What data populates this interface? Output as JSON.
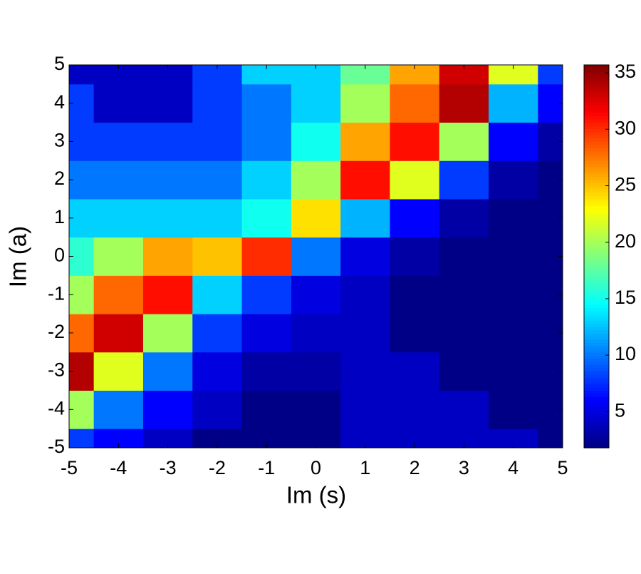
{
  "chart_data": {
    "type": "contourf",
    "xlabel": "Im (s)",
    "ylabel": "Im (a)",
    "x": [
      -5,
      -4,
      -3,
      -2,
      -1,
      0,
      1,
      2,
      3,
      4,
      5
    ],
    "y": [
      -5,
      -4,
      -3,
      -2,
      -1,
      0,
      1,
      2,
      3,
      4,
      5
    ],
    "z": [
      [
        8,
        6,
        4,
        2,
        2,
        2,
        4,
        4,
        4,
        4,
        2
      ],
      [
        20,
        10,
        6,
        4,
        2,
        2,
        4,
        4,
        4,
        2,
        2
      ],
      [
        34,
        22,
        10,
        5,
        3,
        3,
        4,
        4,
        2,
        2,
        2
      ],
      [
        28,
        33,
        20,
        8,
        5,
        4,
        4,
        2,
        2,
        2,
        2
      ],
      [
        20,
        28,
        31,
        13,
        8,
        5,
        4,
        2,
        2,
        2,
        2
      ],
      [
        16,
        20,
        26,
        25,
        30,
        10,
        5,
        3,
        2,
        2,
        2
      ],
      [
        13,
        13,
        13,
        13,
        15,
        24,
        12,
        6,
        3,
        2,
        2
      ],
      [
        10,
        10,
        10,
        10,
        13,
        20,
        31,
        22,
        8,
        3,
        2
      ],
      [
        8,
        8,
        8,
        8,
        10,
        15,
        26,
        31,
        20,
        6,
        3
      ],
      [
        8,
        4,
        4,
        8,
        10,
        13,
        20,
        28,
        34,
        12,
        6
      ],
      [
        4,
        4,
        4,
        8,
        13,
        13,
        18,
        26,
        33,
        22,
        8
      ]
    ],
    "xlim": [
      -5,
      5
    ],
    "ylim": [
      -5,
      5
    ],
    "xticks": [
      -5,
      -4,
      -3,
      -2,
      -1,
      0,
      1,
      2,
      3,
      4,
      5
    ],
    "yticks": [
      -5,
      -4,
      -3,
      -2,
      -1,
      0,
      1,
      2,
      3,
      4,
      5
    ],
    "colormap": "jet",
    "zlim": [
      1.8,
      35.7
    ],
    "zticks": [
      5,
      10,
      15,
      20,
      25,
      30,
      35
    ]
  }
}
